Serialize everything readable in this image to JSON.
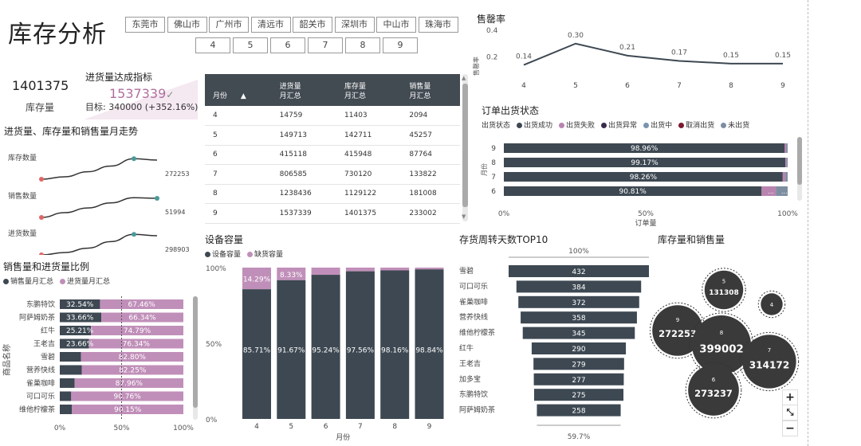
{
  "page_title": "库存分析",
  "city_slicer": [
    "东莞市",
    "佛山市",
    "广州市",
    "清远市",
    "韶关市",
    "深圳市",
    "中山市",
    "珠海市"
  ],
  "month_slicer": [
    "4",
    "5",
    "6",
    "7",
    "8",
    "9"
  ],
  "kpi": {
    "value": "1401375",
    "label": "库存量"
  },
  "achievement": {
    "title": "进货量达成指标",
    "value": "1537339",
    "check": "✓",
    "target": "目标: 340000 (+352.16%)"
  },
  "trend": {
    "title": "进货量、库存量和销售量月走势",
    "rows": [
      {
        "label": "库存数量",
        "end_value": "272253",
        "values": [
          11403,
          142711,
          415948,
          730120,
          1129122,
          1401375
        ]
      },
      {
        "label": "销售数量",
        "end_value": "51994",
        "values": [
          2094,
          45257,
          87764,
          133822,
          181008,
          233002
        ]
      },
      {
        "label": "进货数量",
        "end_value": "298903",
        "values": [
          14759,
          149713,
          415118,
          806585,
          1238436,
          1537339
        ]
      }
    ]
  },
  "table": {
    "headers": [
      "月份",
      "进货量\n月汇总",
      "库存量\n月汇总",
      "销售量\n月汇总"
    ],
    "sort_icon": "▲",
    "rows": [
      [
        "4",
        "14759",
        "11403",
        "2094"
      ],
      [
        "5",
        "149713",
        "142711",
        "45257"
      ],
      [
        "6",
        "415118",
        "415948",
        "87764"
      ],
      [
        "7",
        "806585",
        "730120",
        "133822"
      ],
      [
        "8",
        "1238436",
        "1129122",
        "181008"
      ],
      [
        "9",
        "1537339",
        "1401375",
        "233002"
      ]
    ]
  },
  "sell_rate": {
    "title": "售罄率",
    "ylabel": "售罄率",
    "yticks": [
      "0.4",
      "0.2"
    ],
    "x": [
      "4",
      "5",
      "6",
      "7",
      "8",
      "9"
    ],
    "values": [
      0.14,
      0.3,
      0.21,
      0.17,
      0.15,
      0.15
    ],
    "labels": [
      "0.14",
      "0.30",
      "0.21",
      "0.17",
      "0.15",
      "0.15"
    ]
  },
  "order_status": {
    "title": "订单出货状态",
    "legend_title": "出货状态",
    "legend": [
      {
        "name": "出货成功",
        "color": "#3d4852"
      },
      {
        "name": "出货失败",
        "color": "#b983b0"
      },
      {
        "name": "出货异常",
        "color": "#3a2b4a"
      },
      {
        "name": "出货中",
        "color": "#7a93b0"
      },
      {
        "name": "取消出货",
        "color": "#7a1a2e"
      },
      {
        "name": "未出货",
        "color": "#7d8ea1"
      }
    ],
    "ylabel": "月份",
    "xlabel": "订单量",
    "xticks": [
      "0%",
      "50%",
      "100%"
    ],
    "rows": [
      {
        "month": "9",
        "pct": 98.96,
        "label": "98.96%"
      },
      {
        "month": "8",
        "pct": 99.17,
        "label": "99.17%"
      },
      {
        "month": "7",
        "pct": 98.26,
        "label": "98.26%"
      },
      {
        "month": "6",
        "pct": 90.81,
        "label": "90.81%"
      }
    ],
    "row6_extra": "..."
  },
  "ratio": {
    "title": "销售量和进货量比例",
    "legend": [
      {
        "name": "销售量月汇总",
        "color": "#3d4852"
      },
      {
        "name": "进货量月汇总",
        "color": "#c08fb9"
      }
    ],
    "ylabel": "商品名称",
    "xticks": [
      "0%",
      "50%",
      "100%"
    ],
    "rows": [
      {
        "name": "东鹏特饮",
        "sale": 32.54,
        "sale_label": "32.54%",
        "buy_label": "67.46%"
      },
      {
        "name": "阿萨姆奶茶",
        "sale": 33.66,
        "sale_label": "33.66%",
        "buy_label": "66.34%"
      },
      {
        "name": "红牛",
        "sale": 25.21,
        "sale_label": "25.21%",
        "buy_label": "74.79%"
      },
      {
        "name": "王老吉",
        "sale": 23.66,
        "sale_label": "23.66%",
        "buy_label": "76.34%"
      },
      {
        "name": "雪碧",
        "sale": 17.2,
        "sale_label": "",
        "buy_label": "82.80%"
      },
      {
        "name": "营养快线",
        "sale": 17.75,
        "sale_label": "",
        "buy_label": "82.25%"
      },
      {
        "name": "雀巢咖啡",
        "sale": 12.04,
        "sale_label": "",
        "buy_label": "87.96%"
      },
      {
        "name": "可口可乐",
        "sale": 9.24,
        "sale_label": "",
        "buy_label": "90.76%"
      },
      {
        "name": "维他柠檬茶",
        "sale": 9.85,
        "sale_label": "",
        "buy_label": "90.15%"
      }
    ]
  },
  "capacity": {
    "title": "设备容量",
    "legend": [
      {
        "name": "设备容量",
        "color": "#3d4852"
      },
      {
        "name": "缺货容量",
        "color": "#c08fb9"
      }
    ],
    "yticks": [
      "100%",
      "50%",
      "0%"
    ],
    "xlabel": "月份",
    "categories": [
      "4",
      "5",
      "6",
      "7",
      "8",
      "9"
    ],
    "values": [
      85.71,
      91.67,
      95.24,
      97.56,
      98.16,
      98.84
    ],
    "labels": [
      "85.71%",
      "91.67%",
      "95.24%",
      "97.56%",
      "98.16%",
      "98.84%"
    ],
    "short_labels": [
      "14.29%",
      "8.33%",
      "",
      "",
      "",
      ""
    ]
  },
  "turnover": {
    "title": "存货周转天数TOP10",
    "top_label": "100%",
    "bottom_label": "59.7%",
    "rows": [
      {
        "name": "雪碧",
        "value": 432
      },
      {
        "name": "可口可乐",
        "value": 384
      },
      {
        "name": "雀巢咖啡",
        "value": 372
      },
      {
        "name": "营养快线",
        "value": 358
      },
      {
        "name": "维他柠檬茶",
        "value": 345
      },
      {
        "name": "红牛",
        "value": 290
      },
      {
        "name": "王老吉",
        "value": 279
      },
      {
        "name": "加多宝",
        "value": 277
      },
      {
        "name": "东鹏特饮",
        "value": 275
      },
      {
        "name": "阿萨姆奶茶",
        "value": 258
      }
    ]
  },
  "bubble": {
    "title": "库存量和销售量",
    "bubbles": [
      {
        "month": "5",
        "value": "131308",
        "size": 131308
      },
      {
        "month": "4",
        "value": "",
        "size": 20000
      },
      {
        "month": "9",
        "value": "272253",
        "size": 272253
      },
      {
        "month": "8",
        "value": "399002",
        "size": 399002
      },
      {
        "month": "7",
        "value": "314172",
        "size": 314172
      },
      {
        "month": "6",
        "value": "273237",
        "size": 273237
      }
    ],
    "zoom_in": "+",
    "zoom_fit": "⤡",
    "zoom_out": "−"
  }
}
